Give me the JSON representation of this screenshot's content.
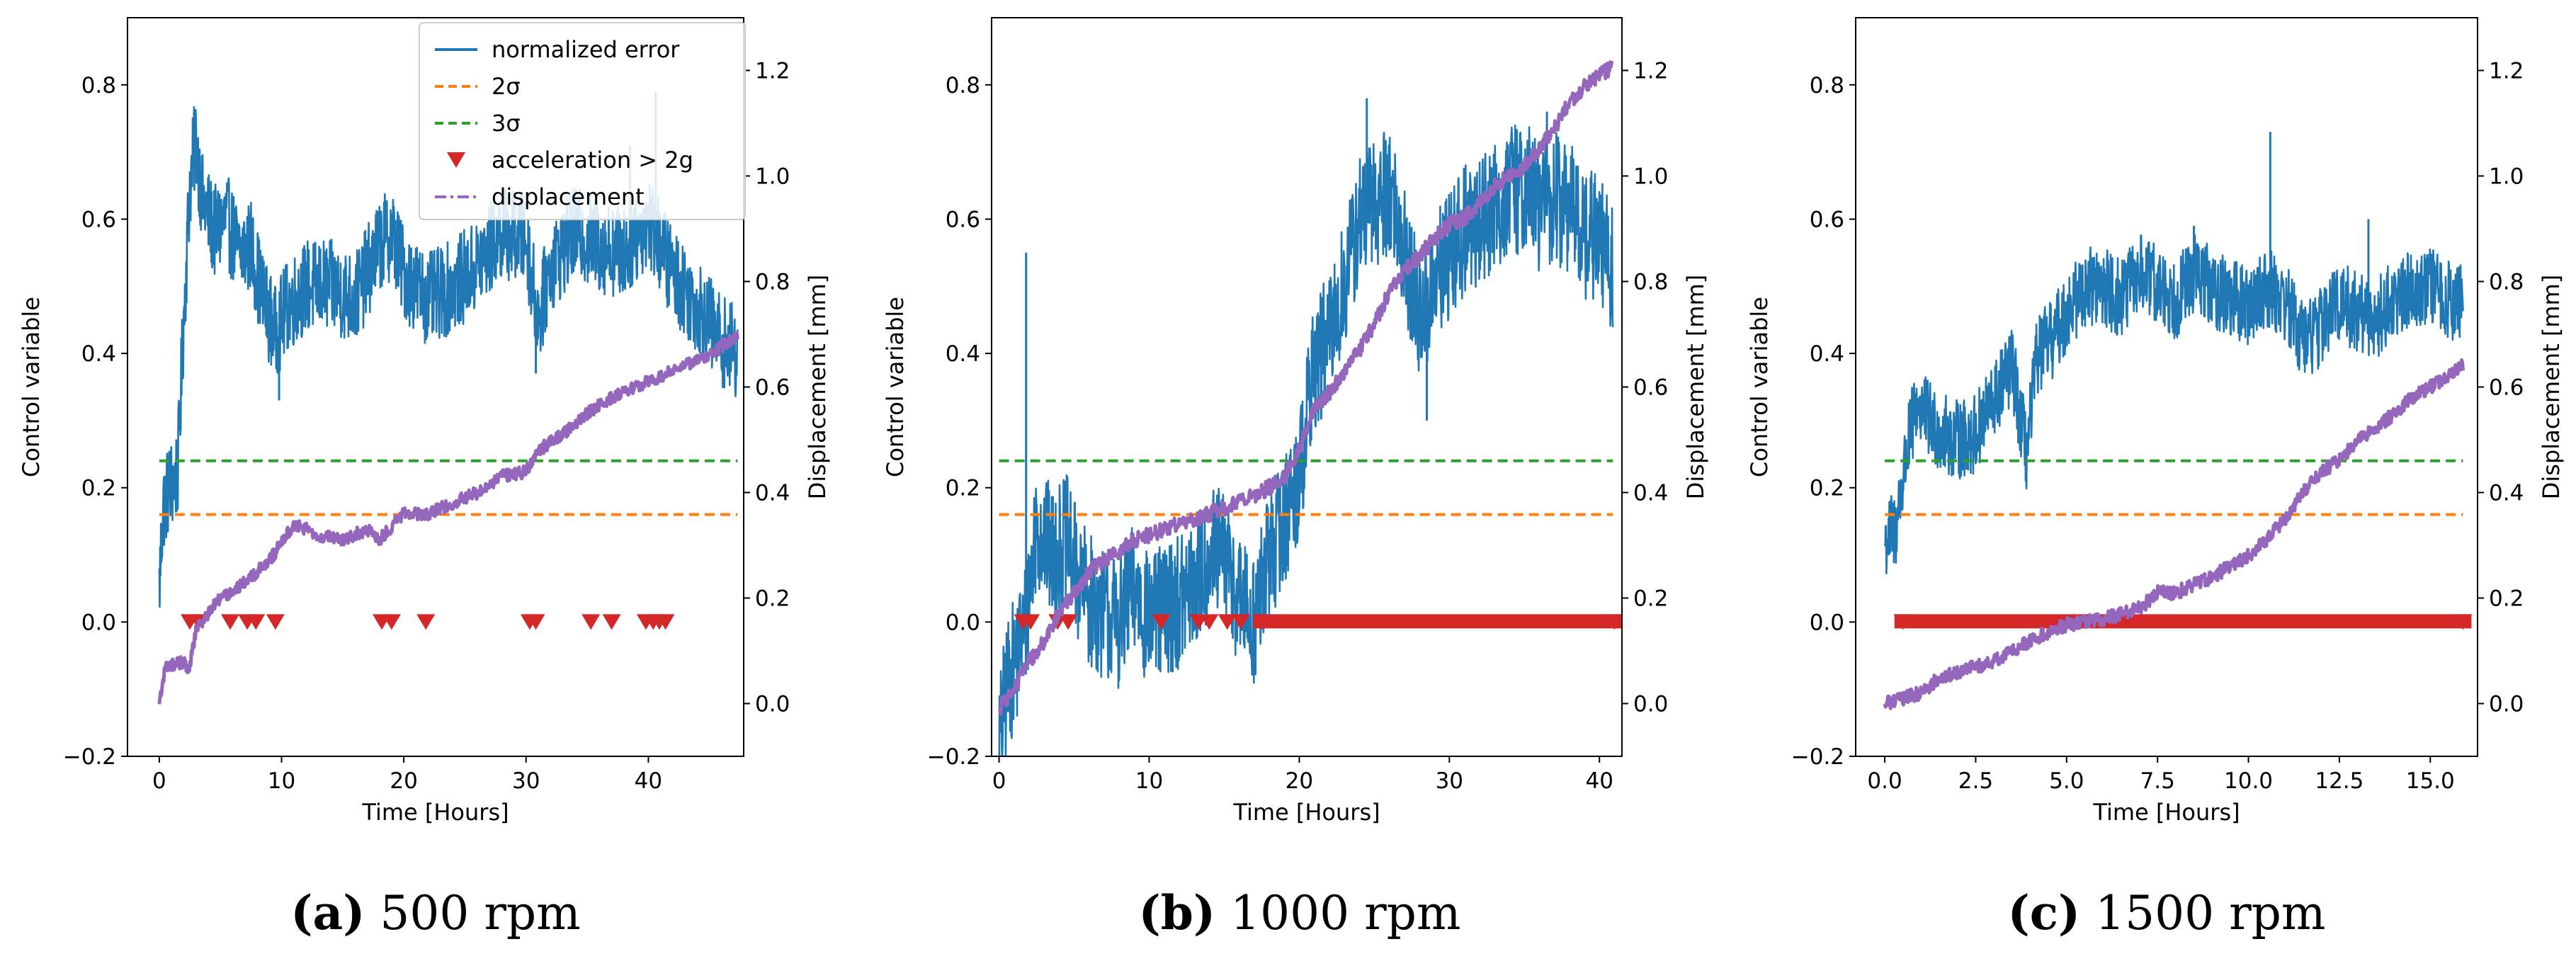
{
  "colors": {
    "error": "#1f77b4",
    "two_sigma": "#ff7f0e",
    "three_sigma": "#2ca02c",
    "accel": "#d62728",
    "displacement": "#9467bd"
  },
  "legend": [
    {
      "key": "error",
      "label": "normalized error"
    },
    {
      "key": "two_sigma",
      "label": "2σ"
    },
    {
      "key": "three_sigma",
      "label": "3σ"
    },
    {
      "key": "accel",
      "label": "acceleration  > 2g"
    },
    {
      "key": "displacement",
      "label": "displacement"
    }
  ],
  "chart_data": [
    {
      "type": "line",
      "caption_letter": "(a)",
      "caption_text": " 500 rpm",
      "xlabel": "Time [Hours]",
      "ylabel": "Control variable",
      "ylabel_right": "Displacement [mm]",
      "xlim": [
        -2.6,
        47.8
      ],
      "ylim": [
        -0.2,
        0.9
      ],
      "ylim_right": [
        -0.1,
        1.3
      ],
      "xticks": [
        0,
        10,
        20,
        30,
        40
      ],
      "xtick_labels": [
        "0",
        "10",
        "20",
        "30",
        "40"
      ],
      "yticks": [
        -0.2,
        0.0,
        0.2,
        0.4,
        0.6,
        0.8
      ],
      "ytick_labels": [
        "−0.2",
        "0.0",
        "0.2",
        "0.4",
        "0.6",
        "0.8"
      ],
      "yticks_right": [
        0.0,
        0.2,
        0.4,
        0.6,
        0.8,
        1.0,
        1.2
      ],
      "ytick_labels_right": [
        "0.0",
        "0.2",
        "0.4",
        "0.6",
        "0.8",
        "1.0",
        "1.2"
      ],
      "two_sigma": 0.16,
      "three_sigma": 0.24,
      "t_end": 47.3,
      "error_series": [
        [
          0,
          0.05
        ],
        [
          0.3,
          0.17
        ],
        [
          0.8,
          0.2
        ],
        [
          1.5,
          0.22
        ],
        [
          2.0,
          0.45
        ],
        [
          2.5,
          0.65
        ],
        [
          3.0,
          0.72
        ],
        [
          3.5,
          0.63
        ],
        [
          4.5,
          0.58
        ],
        [
          5.5,
          0.6
        ],
        [
          6.5,
          0.55
        ],
        [
          7.5,
          0.56
        ],
        [
          8.5,
          0.48
        ],
        [
          9.5,
          0.43
        ],
        [
          10.5,
          0.47
        ],
        [
          12,
          0.5
        ],
        [
          14,
          0.5
        ],
        [
          16,
          0.48
        ],
        [
          18,
          0.56
        ],
        [
          19,
          0.58
        ],
        [
          20,
          0.52
        ],
        [
          22,
          0.48
        ],
        [
          24,
          0.5
        ],
        [
          26,
          0.53
        ],
        [
          28,
          0.58
        ],
        [
          30,
          0.57
        ],
        [
          31,
          0.45
        ],
        [
          32,
          0.53
        ],
        [
          34,
          0.58
        ],
        [
          36,
          0.56
        ],
        [
          38,
          0.55
        ],
        [
          40,
          0.6
        ],
        [
          42,
          0.52
        ],
        [
          44,
          0.47
        ],
        [
          46,
          0.42
        ],
        [
          47.3,
          0.4
        ]
      ],
      "error_noise": 0.07,
      "error_spikes": [
        [
          3.0,
          0.74
        ],
        [
          9.8,
          0.33
        ],
        [
          30.8,
          0.37
        ],
        [
          40.6,
          0.79
        ],
        [
          38.5,
          0.71
        ]
      ],
      "displacement_series": [
        [
          0,
          0.0
        ],
        [
          0.5,
          0.07
        ],
        [
          2.0,
          0.08
        ],
        [
          2.4,
          0.06
        ],
        [
          3,
          0.14
        ],
        [
          5,
          0.2
        ],
        [
          7,
          0.23
        ],
        [
          9,
          0.27
        ],
        [
          11,
          0.34
        ],
        [
          13,
          0.32
        ],
        [
          15,
          0.31
        ],
        [
          17,
          0.33
        ],
        [
          18,
          0.31
        ],
        [
          20,
          0.36
        ],
        [
          22,
          0.36
        ],
        [
          24,
          0.38
        ],
        [
          26,
          0.4
        ],
        [
          28,
          0.43
        ],
        [
          30,
          0.44
        ],
        [
          31,
          0.48
        ],
        [
          33,
          0.51
        ],
        [
          35,
          0.55
        ],
        [
          37,
          0.58
        ],
        [
          39,
          0.6
        ],
        [
          41,
          0.62
        ],
        [
          43,
          0.64
        ],
        [
          45,
          0.66
        ],
        [
          47.3,
          0.7
        ]
      ],
      "displacement_noise": 0.012,
      "accel_events": [
        2.5,
        3.2,
        5.8,
        7.2,
        7.9,
        9.5,
        18.2,
        19.0,
        21.8,
        30.3,
        30.8,
        35.3,
        37.0,
        39.8,
        40.4,
        40.9,
        41.4
      ],
      "accel_bands": []
    },
    {
      "type": "line",
      "caption_letter": "(b)",
      "caption_text": " 1000 rpm",
      "xlabel": "Time [Hours]",
      "ylabel": "Control variable",
      "ylabel_right": "Displacement [mm]",
      "xlim": [
        -0.5,
        41.5
      ],
      "ylim": [
        -0.2,
        0.9
      ],
      "ylim_right": [
        -0.1,
        1.3
      ],
      "xticks": [
        0,
        10,
        20,
        30,
        40
      ],
      "xtick_labels": [
        "0",
        "10",
        "20",
        "30",
        "40"
      ],
      "yticks": [
        -0.2,
        0.0,
        0.2,
        0.4,
        0.6,
        0.8
      ],
      "ytick_labels": [
        "−0.2",
        "0.0",
        "0.2",
        "0.4",
        "0.6",
        "0.8"
      ],
      "yticks_right": [
        0.0,
        0.2,
        0.4,
        0.6,
        0.8,
        1.0,
        1.2
      ],
      "ytick_labels_right": [
        "0.0",
        "0.2",
        "0.4",
        "0.6",
        "0.8",
        "1.0",
        "1.2"
      ],
      "two_sigma": 0.16,
      "three_sigma": 0.24,
      "t_end": 40.9,
      "error_series": [
        [
          0,
          -0.18
        ],
        [
          0.5,
          -0.1
        ],
        [
          1.2,
          -0.05
        ],
        [
          1.8,
          0.0
        ],
        [
          2.5,
          0.15
        ],
        [
          3.5,
          0.1
        ],
        [
          4.5,
          0.12
        ],
        [
          5.5,
          0.05
        ],
        [
          6.5,
          0.02
        ],
        [
          8,
          0.0
        ],
        [
          9,
          0.05
        ],
        [
          10,
          0.0
        ],
        [
          11,
          0.02
        ],
        [
          12,
          0.03
        ],
        [
          13,
          0.05
        ],
        [
          14,
          0.1
        ],
        [
          15,
          0.1
        ],
        [
          16,
          0.03
        ],
        [
          17,
          0.0
        ],
        [
          18,
          0.1
        ],
        [
          19,
          0.15
        ],
        [
          20,
          0.22
        ],
        [
          21,
          0.38
        ],
        [
          22,
          0.42
        ],
        [
          23,
          0.5
        ],
        [
          24,
          0.6
        ],
        [
          25,
          0.62
        ],
        [
          26,
          0.65
        ],
        [
          27,
          0.55
        ],
        [
          28,
          0.45
        ],
        [
          29,
          0.5
        ],
        [
          30,
          0.55
        ],
        [
          31,
          0.58
        ],
        [
          32,
          0.6
        ],
        [
          33,
          0.62
        ],
        [
          34,
          0.64
        ],
        [
          35,
          0.65
        ],
        [
          36,
          0.62
        ],
        [
          37,
          0.63
        ],
        [
          38,
          0.62
        ],
        [
          39,
          0.58
        ],
        [
          40,
          0.57
        ],
        [
          40.9,
          0.52
        ]
      ],
      "error_noise": 0.1,
      "error_spikes": [
        [
          1.8,
          0.55
        ],
        [
          0.2,
          -0.2
        ],
        [
          24.5,
          0.78
        ],
        [
          36.5,
          0.76
        ],
        [
          28.5,
          0.3
        ]
      ],
      "displacement_series": [
        [
          0,
          -0.01
        ],
        [
          1,
          0.03
        ],
        [
          2,
          0.08
        ],
        [
          3,
          0.12
        ],
        [
          4,
          0.17
        ],
        [
          5,
          0.21
        ],
        [
          6,
          0.25
        ],
        [
          7,
          0.27
        ],
        [
          8,
          0.29
        ],
        [
          9,
          0.31
        ],
        [
          10,
          0.32
        ],
        [
          12,
          0.34
        ],
        [
          14,
          0.36
        ],
        [
          16,
          0.38
        ],
        [
          18,
          0.41
        ],
        [
          19,
          0.43
        ],
        [
          20,
          0.48
        ],
        [
          21,
          0.56
        ],
        [
          22,
          0.59
        ],
        [
          23,
          0.63
        ],
        [
          24,
          0.67
        ],
        [
          25,
          0.72
        ],
        [
          26,
          0.78
        ],
        [
          27,
          0.82
        ],
        [
          28,
          0.85
        ],
        [
          29,
          0.88
        ],
        [
          30,
          0.91
        ],
        [
          31,
          0.92
        ],
        [
          32,
          0.95
        ],
        [
          33,
          0.98
        ],
        [
          34,
          1.0
        ],
        [
          35,
          1.02
        ],
        [
          36,
          1.05
        ],
        [
          37,
          1.09
        ],
        [
          38,
          1.14
        ],
        [
          39,
          1.17
        ],
        [
          40,
          1.19
        ],
        [
          40.9,
          1.21
        ]
      ],
      "displacement_noise": 0.015,
      "accel_events": [
        1.6,
        2.1,
        3.9,
        4.6,
        10.8,
        13.3,
        14.0,
        15.2,
        16.1
      ],
      "accel_bands": [
        [
          17.5,
          41.0
        ]
      ]
    },
    {
      "type": "line",
      "caption_letter": "(c)",
      "caption_text": " 1500 rpm",
      "xlabel": "Time [Hours]",
      "ylabel": "Control variable",
      "ylabel_right": "Displacement [mm]",
      "xlim": [
        -0.8,
        16.3
      ],
      "ylim": [
        -0.2,
        0.9
      ],
      "ylim_right": [
        -0.1,
        1.3
      ],
      "xticks": [
        0.0,
        2.5,
        5.0,
        7.5,
        10.0,
        12.5,
        15.0
      ],
      "xtick_labels": [
        "0.0",
        "2.5",
        "5.0",
        "7.5",
        "10.0",
        "12.5",
        "15.0"
      ],
      "yticks": [
        -0.2,
        0.0,
        0.2,
        0.4,
        0.6,
        0.8
      ],
      "ytick_labels": [
        "−0.2",
        "0.0",
        "0.2",
        "0.4",
        "0.6",
        "0.8"
      ],
      "yticks_right": [
        0.0,
        0.2,
        0.4,
        0.6,
        0.8,
        1.0,
        1.2
      ],
      "ytick_labels_right": [
        "0.0",
        "0.2",
        "0.4",
        "0.6",
        "0.8",
        "1.0",
        "1.2"
      ],
      "two_sigma": 0.16,
      "three_sigma": 0.24,
      "t_end": 15.9,
      "error_series": [
        [
          0,
          0.12
        ],
        [
          0.3,
          0.14
        ],
        [
          0.6,
          0.25
        ],
        [
          0.9,
          0.33
        ],
        [
          1.2,
          0.3
        ],
        [
          1.6,
          0.28
        ],
        [
          2.0,
          0.27
        ],
        [
          2.5,
          0.28
        ],
        [
          3.0,
          0.33
        ],
        [
          3.5,
          0.38
        ],
        [
          3.9,
          0.25
        ],
        [
          4.2,
          0.4
        ],
        [
          4.6,
          0.42
        ],
        [
          5.0,
          0.46
        ],
        [
          5.5,
          0.5
        ],
        [
          6.0,
          0.5
        ],
        [
          6.5,
          0.48
        ],
        [
          7.0,
          0.52
        ],
        [
          7.5,
          0.5
        ],
        [
          8.0,
          0.48
        ],
        [
          8.5,
          0.52
        ],
        [
          9.0,
          0.5
        ],
        [
          9.5,
          0.48
        ],
        [
          10.0,
          0.47
        ],
        [
          10.5,
          0.5
        ],
        [
          11.0,
          0.48
        ],
        [
          11.5,
          0.42
        ],
        [
          12.0,
          0.44
        ],
        [
          12.5,
          0.48
        ],
        [
          13.0,
          0.46
        ],
        [
          13.5,
          0.45
        ],
        [
          14.0,
          0.48
        ],
        [
          14.5,
          0.5
        ],
        [
          15.0,
          0.5
        ],
        [
          15.5,
          0.48
        ],
        [
          15.9,
          0.47
        ]
      ],
      "error_noise": 0.06,
      "error_spikes": [
        [
          10.6,
          0.73
        ],
        [
          8.5,
          0.59
        ],
        [
          13.3,
          0.6
        ]
      ],
      "displacement_series": [
        [
          0,
          0.0
        ],
        [
          0.5,
          0.01
        ],
        [
          1.0,
          0.02
        ],
        [
          1.5,
          0.05
        ],
        [
          2.0,
          0.06
        ],
        [
          3.0,
          0.08
        ],
        [
          4.0,
          0.12
        ],
        [
          5.0,
          0.15
        ],
        [
          6.0,
          0.16
        ],
        [
          7.0,
          0.18
        ],
        [
          7.5,
          0.21
        ],
        [
          8.0,
          0.21
        ],
        [
          9.0,
          0.24
        ],
        [
          10.0,
          0.28
        ],
        [
          10.5,
          0.31
        ],
        [
          11.0,
          0.35
        ],
        [
          11.5,
          0.4
        ],
        [
          12.0,
          0.44
        ],
        [
          12.5,
          0.46
        ],
        [
          13.0,
          0.5
        ],
        [
          13.5,
          0.52
        ],
        [
          14.0,
          0.55
        ],
        [
          14.5,
          0.58
        ],
        [
          15.0,
          0.6
        ],
        [
          15.5,
          0.62
        ],
        [
          15.9,
          0.64
        ]
      ],
      "displacement_noise": 0.013,
      "accel_events": [],
      "accel_bands": [
        [
          0.5,
          15.9
        ]
      ]
    }
  ]
}
